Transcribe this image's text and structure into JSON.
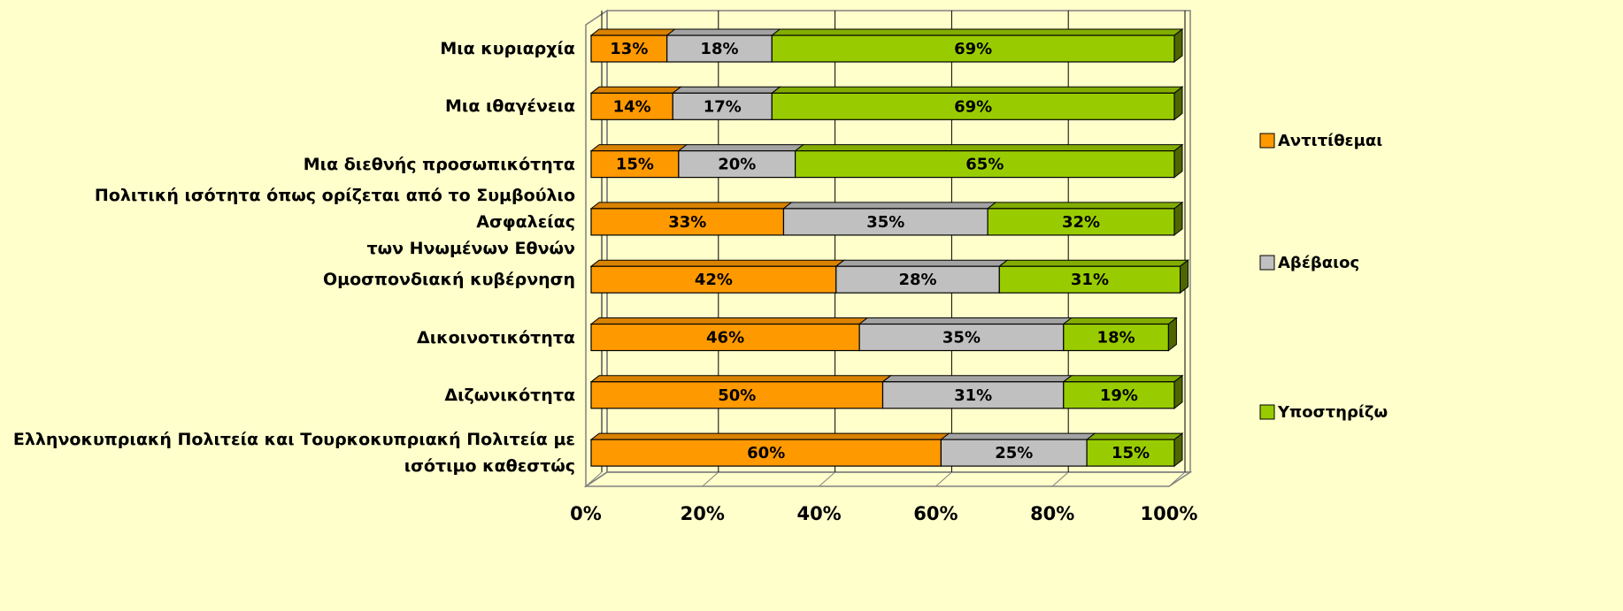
{
  "chart_data": {
    "type": "bar",
    "orientation": "horizontal",
    "stacked": true,
    "categories": [
      "Μια κυριαρχία",
      "Μια ιθαγένεια",
      "Μια διεθνής προσωπικότητα",
      "Πολιτική ισότητα όπως ορίζεται από το Συμβούλιο Ασφαλείας\nτων Ηνωμένων Εθνών",
      "Ομοσπονδιακή κυβέρνηση",
      "Δικοινοτικότητα",
      "Διζωνικότητα",
      "Ελληνοκυπριακή Πολιτεία και Τουρκοκυπριακή Πολιτεία με\nισότιμο καθεστώς"
    ],
    "series": [
      {
        "name": "Αντιτίθεμαι",
        "color": "#ff9900",
        "values": [
          13,
          14,
          15,
          33,
          42,
          46,
          50,
          60
        ],
        "value_labels": [
          "13%",
          "14%",
          "15%",
          "33%",
          "42%",
          "46%",
          "50%",
          "60%"
        ]
      },
      {
        "name": "Αβέβαιος",
        "color": "#c0c0c0",
        "values": [
          18,
          17,
          20,
          35,
          28,
          35,
          31,
          25
        ],
        "value_labels": [
          "18%",
          "17%",
          "20%",
          "35%",
          "28%",
          "35%",
          "31%",
          "25%"
        ]
      },
      {
        "name": "Υποστηρίζω",
        "color": "#99cc00",
        "values": [
          69,
          69,
          65,
          32,
          31,
          18,
          19,
          15
        ],
        "value_labels": [
          "69%",
          "69%",
          "65%",
          "32%",
          "31%",
          "18%",
          "19%",
          "15%"
        ]
      }
    ],
    "xlim": [
      0,
      100
    ],
    "xticks": [
      {
        "value": 0,
        "label": "0%"
      },
      {
        "value": 20,
        "label": "20%"
      },
      {
        "value": 40,
        "label": "40%"
      },
      {
        "value": 60,
        "label": "60%"
      },
      {
        "value": 80,
        "label": "80%"
      },
      {
        "value": 100,
        "label": "100%"
      }
    ],
    "grid": true,
    "legend": "right"
  }
}
